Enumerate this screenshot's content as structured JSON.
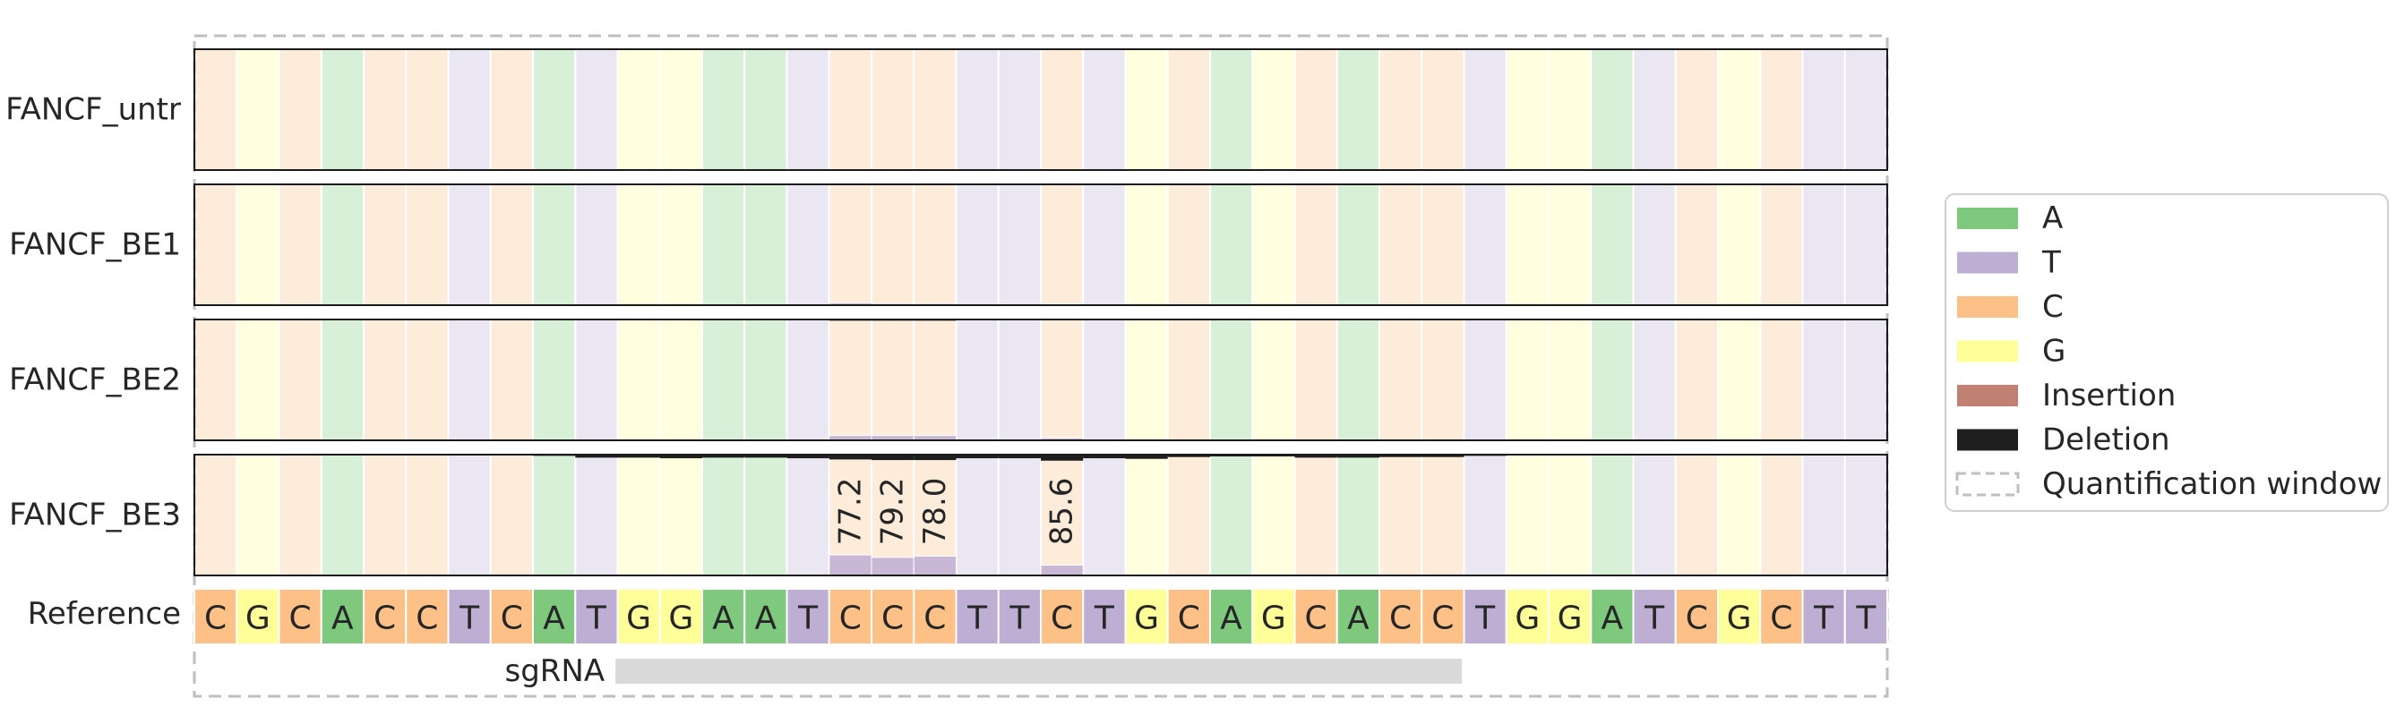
{
  "chart_data": {
    "type": "heatmap",
    "reference_label": "Reference",
    "reference_sequence": [
      "C",
      "G",
      "C",
      "A",
      "C",
      "C",
      "T",
      "C",
      "A",
      "T",
      "G",
      "G",
      "A",
      "A",
      "T",
      "C",
      "C",
      "C",
      "T",
      "T",
      "C",
      "T",
      "G",
      "C",
      "A",
      "G",
      "C",
      "A",
      "C",
      "C",
      "T",
      "G",
      "G",
      "A",
      "T",
      "C",
      "G",
      "C",
      "T",
      "T"
    ],
    "sgrna_label": "sgRNA",
    "sgrna_range": [
      10,
      29
    ],
    "colors": {
      "A": "#7fc97f",
      "T": "#beaed4",
      "C": "#fdc086",
      "G": "#ffff99",
      "Insertion": "#c08172",
      "Deletion": "#1f1f1f",
      "quant_window": "#bfbfbf"
    },
    "samples": [
      {
        "name": "FANCF_untr",
        "edits": []
      },
      {
        "name": "FANCF_BE1",
        "edits": [
          {
            "pos": 15,
            "base": "T",
            "pct": 2.0
          },
          {
            "pos": 16,
            "base": "T",
            "pct": 1.5
          },
          {
            "pos": 17,
            "base": "T",
            "pct": 1.5
          },
          {
            "pos": 20,
            "base": "T",
            "pct": 1.0
          }
        ]
      },
      {
        "name": "FANCF_BE2",
        "edits": [
          {
            "pos": 15,
            "base": "T",
            "pct": 4.0
          },
          {
            "pos": 16,
            "base": "T",
            "pct": 4.0
          },
          {
            "pos": 17,
            "base": "T",
            "pct": 4.0
          },
          {
            "pos": 20,
            "base": "T",
            "pct": 2.0
          }
        ],
        "deletions": [
          {
            "pos": 15,
            "pct": 1.0
          },
          {
            "pos": 16,
            "pct": 1.0
          },
          {
            "pos": 17,
            "pct": 1.0
          }
        ]
      },
      {
        "name": "FANCF_BE3",
        "edits": [
          {
            "pos": 15,
            "base": "T",
            "pct": 17.0
          },
          {
            "pos": 16,
            "base": "T",
            "pct": 15.0
          },
          {
            "pos": 17,
            "base": "T",
            "pct": 16.0
          },
          {
            "pos": 20,
            "base": "T",
            "pct": 8.5
          }
        ],
        "deletions": [
          {
            "pos": 8,
            "pct": 1.0
          },
          {
            "pos": 9,
            "pct": 2.5
          },
          {
            "pos": 10,
            "pct": 2.5
          },
          {
            "pos": 11,
            "pct": 3.0
          },
          {
            "pos": 12,
            "pct": 2.5
          },
          {
            "pos": 13,
            "pct": 2.5
          },
          {
            "pos": 14,
            "pct": 3.0
          },
          {
            "pos": 15,
            "pct": 4.0
          },
          {
            "pos": 16,
            "pct": 4.5
          },
          {
            "pos": 17,
            "pct": 4.5
          },
          {
            "pos": 18,
            "pct": 3.0
          },
          {
            "pos": 19,
            "pct": 3.0
          },
          {
            "pos": 20,
            "pct": 5.0
          },
          {
            "pos": 21,
            "pct": 3.0
          },
          {
            "pos": 22,
            "pct": 3.5
          },
          {
            "pos": 23,
            "pct": 2.0
          },
          {
            "pos": 24,
            "pct": 1.5
          },
          {
            "pos": 25,
            "pct": 1.5
          },
          {
            "pos": 26,
            "pct": 2.5
          },
          {
            "pos": 27,
            "pct": 2.5
          },
          {
            "pos": 28,
            "pct": 2.0
          },
          {
            "pos": 29,
            "pct": 2.0
          },
          {
            "pos": 30,
            "pct": 1.0
          }
        ],
        "annotations": [
          {
            "pos": 15,
            "text": "77.2"
          },
          {
            "pos": 16,
            "text": "79.2"
          },
          {
            "pos": 17,
            "text": "78.0"
          },
          {
            "pos": 20,
            "text": "85.6"
          }
        ]
      }
    ],
    "legend": {
      "placement": "right",
      "entries": [
        {
          "label": "A",
          "color_key": "A",
          "style": "fill"
        },
        {
          "label": "T",
          "color_key": "T",
          "style": "fill"
        },
        {
          "label": "C",
          "color_key": "C",
          "style": "fill"
        },
        {
          "label": "G",
          "color_key": "G",
          "style": "fill"
        },
        {
          "label": "Insertion",
          "color_key": "Insertion",
          "style": "fill"
        },
        {
          "label": "Deletion",
          "color_key": "Deletion",
          "style": "fill"
        },
        {
          "label": "Quantification window",
          "color_key": "quant_window",
          "style": "dashed"
        }
      ]
    }
  }
}
